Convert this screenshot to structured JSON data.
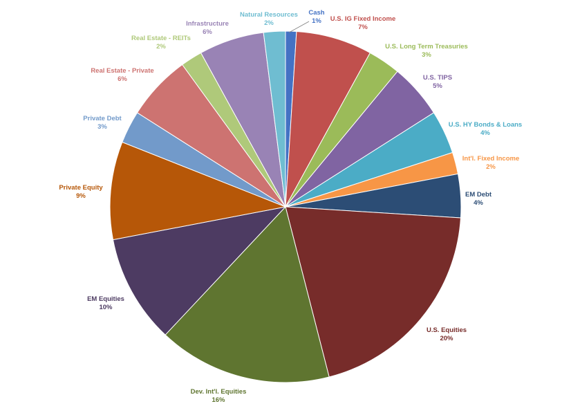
{
  "chart_data": {
    "type": "pie",
    "title": "",
    "slices": [
      {
        "name": "Cash",
        "value": 1,
        "label": "1%",
        "color": "#4472C4",
        "text_color": "#4472C4"
      },
      {
        "name": "U.S. IG Fixed Income",
        "value": 7,
        "label": "7%",
        "color": "#C0504D",
        "text_color": "#C0504D"
      },
      {
        "name": "U.S. Long Term Treasuries",
        "value": 3,
        "label": "3%",
        "color": "#9BBB59",
        "text_color": "#9BBB59"
      },
      {
        "name": "U.S. TIPS",
        "value": 5,
        "label": "5%",
        "color": "#8064A2",
        "text_color": "#8064A2"
      },
      {
        "name": "U.S. HY Bonds & Loans",
        "value": 4,
        "label": "4%",
        "color": "#4BACC6",
        "text_color": "#4BACC6"
      },
      {
        "name": "Int'l. Fixed Income",
        "value": 2,
        "label": "2%",
        "color": "#F79646",
        "text_color": "#F79646"
      },
      {
        "name": "EM Debt",
        "value": 4,
        "label": "4%",
        "color": "#2C4D75",
        "text_color": "#2C4D75"
      },
      {
        "name": "U.S. Equities",
        "value": 20,
        "label": "20%",
        "color": "#772C2A",
        "text_color": "#772C2A"
      },
      {
        "name": "Dev. Int'l. Equities",
        "value": 16,
        "label": "16%",
        "color": "#5F7530",
        "text_color": "#5F7530"
      },
      {
        "name": "EM Equities",
        "value": 10,
        "label": "10%",
        "color": "#4D3B62",
        "text_color": "#4D3B62"
      },
      {
        "name": "Private Equity",
        "value": 9,
        "label": "9%",
        "color": "#B65708",
        "text_color": "#B65708"
      },
      {
        "name": "Private Debt",
        "value": 3,
        "label": "3%",
        "color": "#729ACA",
        "text_color": "#729ACA"
      },
      {
        "name": "Real Estate - Private",
        "value": 6,
        "label": "6%",
        "color": "#CD7371",
        "text_color": "#CD7371"
      },
      {
        "name": "Real Estate - REITs",
        "value": 2,
        "label": "2%",
        "color": "#AFC97A",
        "text_color": "#AFC97A"
      },
      {
        "name": "Infrastructure",
        "value": 6,
        "label": "6%",
        "color": "#9983B5",
        "text_color": "#9983B5"
      },
      {
        "name": "Natural Resources",
        "value": 2,
        "label": "2%",
        "color": "#6FBDD1",
        "text_color": "#6FBDD1"
      }
    ]
  }
}
